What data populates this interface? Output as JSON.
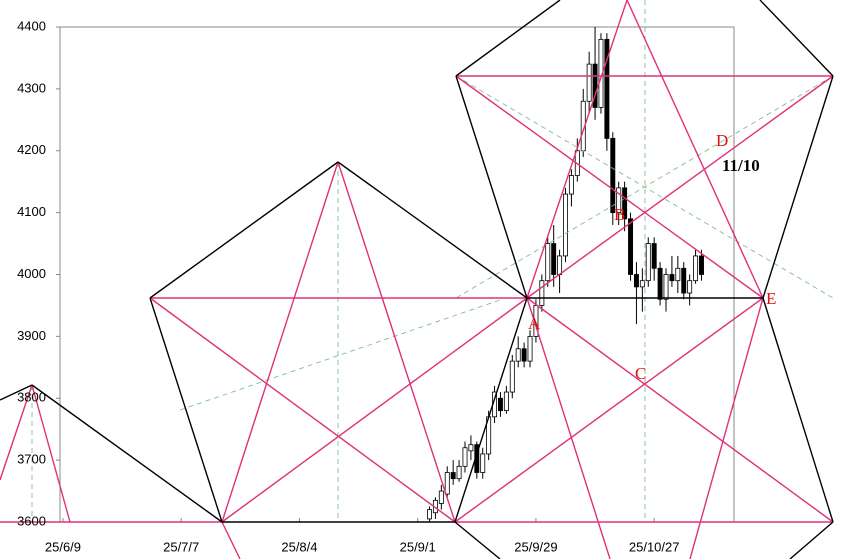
{
  "chart_data": {
    "type": "candlestick",
    "xlim": [
      -0.5,
      113.5
    ],
    "xticks": [
      {
        "value": 0,
        "label": "25/6/9"
      },
      {
        "value": 20,
        "label": "25/7/7"
      },
      {
        "value": 40,
        "label": "25/8/4"
      },
      {
        "value": 60,
        "label": "25/9/1"
      },
      {
        "value": 80,
        "label": "25/9/29"
      },
      {
        "value": 100,
        "label": "25/10/27"
      }
    ],
    "ylim": [
      3600,
      4400
    ],
    "yticks": [
      3600,
      3700,
      3800,
      3900,
      4000,
      4100,
      4200,
      4300,
      4400
    ],
    "up_color": "#ffffff",
    "down_color": "#000000",
    "x": [
      62,
      63,
      64,
      65,
      66,
      67,
      68,
      69,
      70,
      71,
      72,
      73,
      74,
      75,
      76,
      77,
      78,
      79,
      80,
      81,
      82,
      83,
      84,
      85,
      86,
      87,
      88,
      89,
      90,
      91,
      92,
      93,
      94,
      95,
      96,
      97,
      98,
      99,
      100,
      101,
      102,
      103,
      104,
      105,
      106,
      107,
      108
    ],
    "open": [
      3605,
      3615,
      3630,
      3645,
      3680,
      3670,
      3690,
      3715,
      3725,
      3680,
      3710,
      3770,
      3800,
      3780,
      3810,
      3860,
      3880,
      3860,
      3900,
      3950,
      3990,
      4050,
      4000,
      4030,
      4130,
      4160,
      4200,
      4280,
      4340,
      4270,
      4380,
      4220,
      4100,
      4140,
      4090,
      4000,
      3980,
      3990,
      4050,
      4010,
      3960,
      4000,
      3990,
      4010,
      3970,
      3990,
      4030
    ],
    "high": [
      3625,
      3640,
      3660,
      3690,
      3700,
      3700,
      3730,
      3740,
      3730,
      3720,
      3780,
      3820,
      3810,
      3820,
      3870,
      3900,
      3890,
      3910,
      3960,
      4000,
      4060,
      4080,
      4040,
      4140,
      4170,
      4220,
      4300,
      4360,
      4400,
      4390,
      4390,
      4230,
      4150,
      4150,
      4100,
      4020,
      4010,
      4060,
      4060,
      4020,
      4010,
      4030,
      4030,
      4020,
      4000,
      4040,
      4040
    ],
    "low": [
      3600,
      3605,
      3620,
      3640,
      3660,
      3665,
      3680,
      3700,
      3670,
      3670,
      3700,
      3760,
      3770,
      3775,
      3800,
      3850,
      3850,
      3850,
      3890,
      3940,
      3980,
      3980,
      3970,
      4020,
      4110,
      4150,
      4190,
      4260,
      4250,
      4260,
      4200,
      4080,
      4080,
      4070,
      3990,
      3920,
      3940,
      3980,
      3990,
      3950,
      3940,
      3980,
      3970,
      3960,
      3950,
      3985,
      3990
    ],
    "close": [
      3620,
      3635,
      3650,
      3680,
      3670,
      3690,
      3720,
      3725,
      3680,
      3710,
      3770,
      3810,
      3780,
      3810,
      3860,
      3880,
      3860,
      3900,
      3950,
      3990,
      4050,
      4000,
      4030,
      4130,
      4160,
      4200,
      4280,
      4340,
      4270,
      4380,
      4220,
      4100,
      4140,
      4090,
      4000,
      3980,
      3990,
      4050,
      4010,
      3960,
      4000,
      3990,
      4010,
      3970,
      3990,
      4030,
      4000
    ],
    "annotations": [
      "A",
      "B",
      "C",
      "D",
      "E",
      "11/10"
    ]
  }
}
